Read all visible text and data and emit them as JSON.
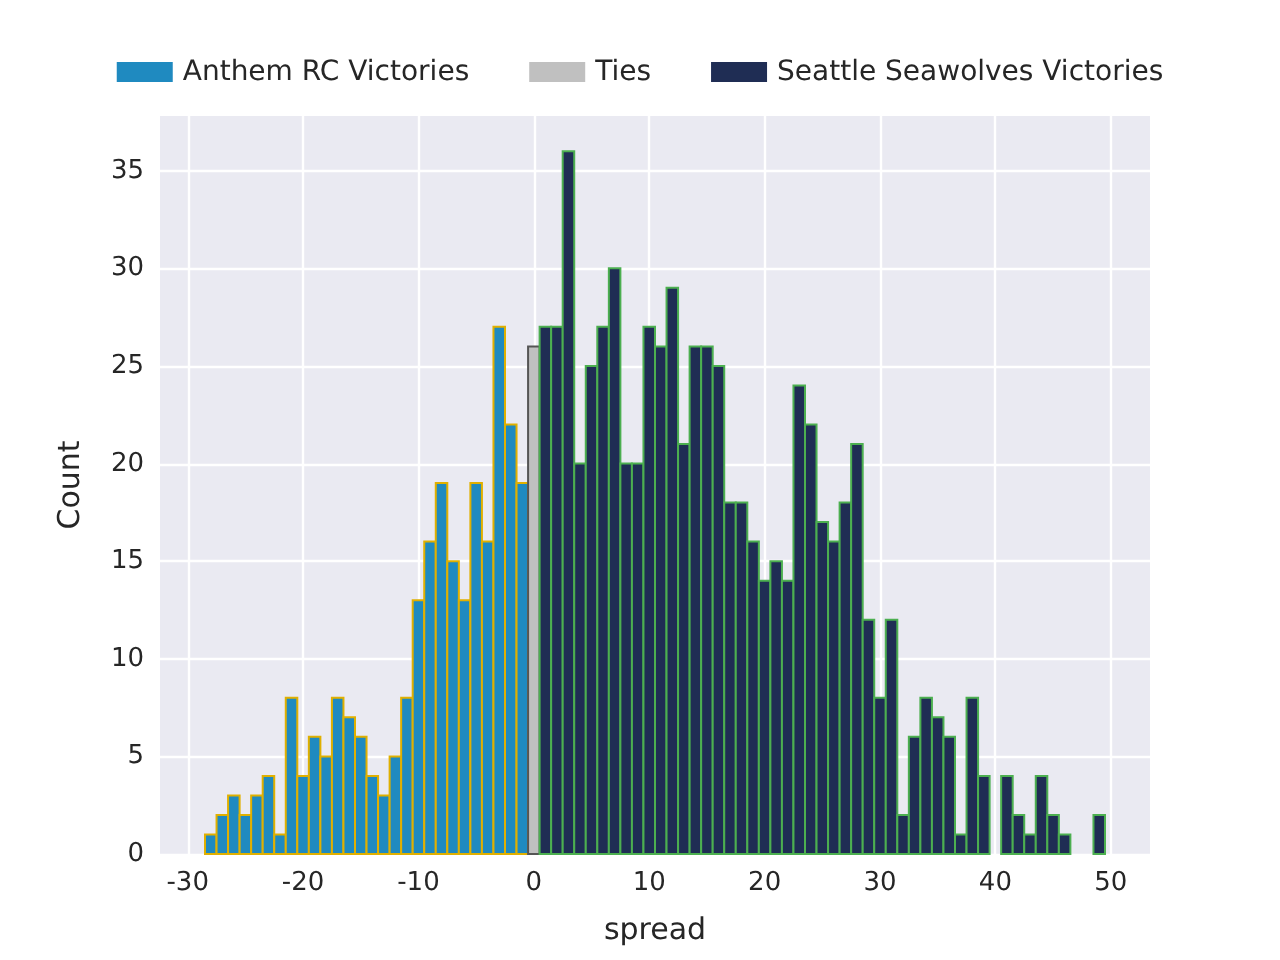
{
  "chart_data": {
    "type": "histogram",
    "xlabel": "spread",
    "ylabel": "Count",
    "bins": [
      -28.5,
      -27.5,
      -26.5,
      -25.5,
      -24.5,
      -23.5,
      -22.5,
      -21.5,
      -20.5,
      -19.5,
      -18.5,
      -17.5,
      -16.5,
      -15.5,
      -14.5,
      -13.5,
      -12.5,
      -11.5,
      -10.5,
      -9.5,
      -8.5,
      -7.5,
      -6.5,
      -5.5,
      -4.5,
      -3.5,
      -2.5,
      -1.5,
      -0.5,
      0.5,
      1.5,
      2.5,
      3.5,
      4.5,
      5.5,
      6.5,
      7.5,
      8.5,
      9.5,
      10.5,
      11.5,
      12.5,
      13.5,
      14.5,
      15.5,
      16.5,
      17.5,
      18.5,
      19.5,
      20.5,
      21.5,
      22.5,
      23.5,
      24.5,
      25.5,
      26.5,
      27.5,
      28.5,
      29.5,
      30.5,
      31.5,
      32.5,
      33.5,
      34.5,
      35.5,
      36.5,
      37.5,
      38.5,
      39.5,
      40.5,
      41.5,
      42.5,
      43.5,
      44.5,
      45.5,
      46.5,
      47.5,
      48.5,
      49.5
    ],
    "series": [
      {
        "name": "Anthem RC Victories",
        "color": "#1f8ac0",
        "values": [
          1,
          2,
          3,
          2,
          3,
          4,
          1,
          8,
          4,
          6,
          5,
          8,
          7,
          6,
          4,
          3,
          5,
          8,
          13,
          16,
          19,
          15,
          13,
          19,
          16,
          27,
          22,
          19,
          null,
          null,
          null,
          null,
          null,
          null,
          null,
          null,
          null,
          null,
          null,
          null,
          null,
          null,
          null,
          null,
          null,
          null,
          null,
          null,
          null,
          null,
          null,
          null,
          null,
          null,
          null,
          null,
          null,
          null,
          null,
          null,
          null,
          null,
          null,
          null,
          null,
          null,
          null,
          null,
          null,
          null,
          null,
          null,
          null,
          null,
          null,
          null,
          null,
          null
        ]
      },
      {
        "name": "Ties",
        "color": "#c0c0c0",
        "values": [
          null,
          null,
          null,
          null,
          null,
          null,
          null,
          null,
          null,
          null,
          null,
          null,
          null,
          null,
          null,
          null,
          null,
          null,
          null,
          null,
          null,
          null,
          null,
          null,
          null,
          null,
          null,
          null,
          26,
          null,
          null,
          null,
          null,
          null,
          null,
          null,
          null,
          null,
          null,
          null,
          null,
          null,
          null,
          null,
          null,
          null,
          null,
          null,
          null,
          null,
          null,
          null,
          null,
          null,
          null,
          null,
          null,
          null,
          null,
          null,
          null,
          null,
          null,
          null,
          null,
          null,
          null,
          null,
          null,
          null,
          null,
          null,
          null,
          null,
          null,
          null,
          null,
          null
        ]
      },
      {
        "name": "Seattle Seawolves Victories",
        "color": "#1f2d54",
        "values": [
          null,
          null,
          null,
          null,
          null,
          null,
          null,
          null,
          null,
          null,
          null,
          null,
          null,
          null,
          null,
          null,
          null,
          null,
          null,
          null,
          null,
          null,
          null,
          null,
          null,
          null,
          null,
          null,
          null,
          27,
          27,
          36,
          20,
          25,
          27,
          30,
          20,
          20,
          27,
          26,
          29,
          21,
          26,
          26,
          25,
          18,
          18,
          16,
          14,
          15,
          14,
          24,
          22,
          17,
          16,
          18,
          21,
          12,
          8,
          12,
          2,
          6,
          8,
          7,
          6,
          1,
          8,
          4,
          0,
          4,
          2,
          1,
          4,
          2,
          1,
          0,
          0,
          2
        ]
      }
    ],
    "xlim": [
      -32.4,
      53.4
    ],
    "xticks": [
      -30,
      -20,
      -10,
      0,
      10,
      20,
      30,
      40,
      50
    ],
    "ylim": [
      0,
      37.8
    ],
    "yticks": [
      0,
      5,
      10,
      15,
      20,
      25,
      30,
      35
    ],
    "grid": true,
    "legend": "top"
  }
}
